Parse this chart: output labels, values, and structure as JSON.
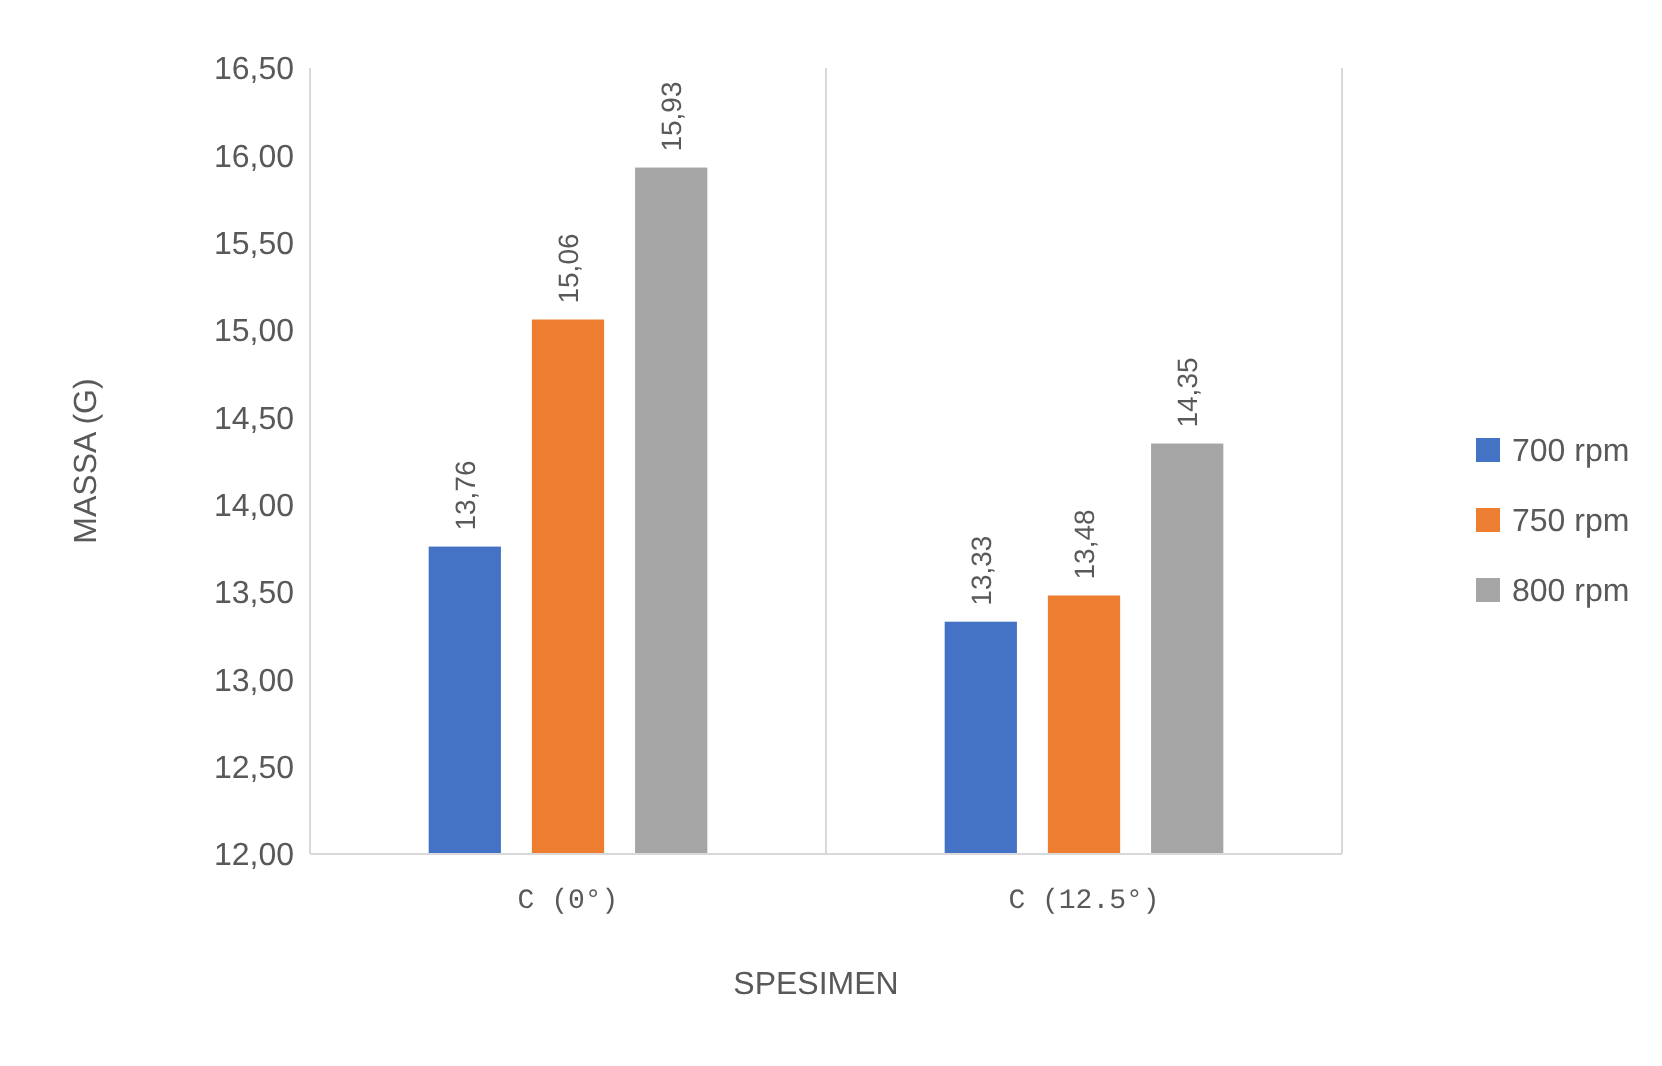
{
  "chart_data": {
    "type": "bar",
    "xlabel": "SPESIMEN",
    "ylabel": "MASSA (G)",
    "categories": [
      "C (0°)",
      "C (12.5°)"
    ],
    "series": [
      {
        "name": "700 rpm",
        "color": "#4472c4",
        "values": [
          13.76,
          13.33
        ],
        "value_labels": [
          "13,76",
          "13,33"
        ]
      },
      {
        "name": "750 rpm",
        "color": "#ed7d31",
        "values": [
          15.06,
          13.48
        ],
        "value_labels": [
          "15,06",
          "13,48"
        ]
      },
      {
        "name": "800 rpm",
        "color": "#a5a5a5",
        "values": [
          15.93,
          14.35
        ],
        "value_labels": [
          "15,93",
          "14,35"
        ]
      }
    ],
    "ylim": [
      12,
      16.5
    ],
    "yticks": [
      {
        "value": 12,
        "label": "12,00"
      },
      {
        "value": 12.5,
        "label": "12,50"
      },
      {
        "value": 13,
        "label": "13,00"
      },
      {
        "value": 13.5,
        "label": "13,50"
      },
      {
        "value": 14,
        "label": "14,00"
      },
      {
        "value": 14.5,
        "label": "14,50"
      },
      {
        "value": 15,
        "label": "15,00"
      },
      {
        "value": 15.5,
        "label": "15,50"
      },
      {
        "value": 16,
        "label": "16,00"
      },
      {
        "value": 16.5,
        "label": "16,50"
      }
    ],
    "grid": "x",
    "legend": "right"
  }
}
